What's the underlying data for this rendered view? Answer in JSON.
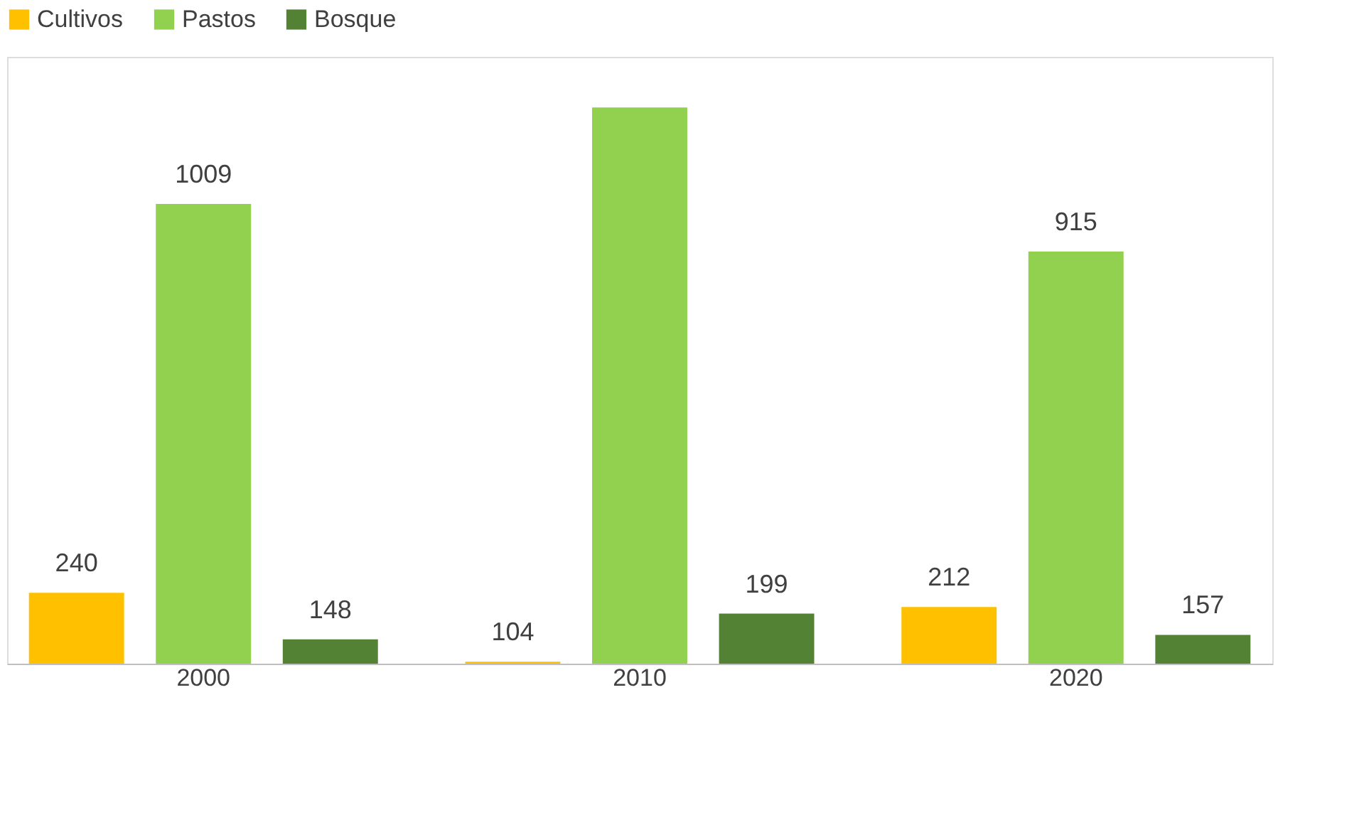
{
  "chart_data": {
    "type": "bar",
    "categories": [
      "2000",
      "2010",
      "2020"
    ],
    "series": [
      {
        "name": "Cultivos",
        "color": "#ffc000",
        "values": [
          240,
          104,
          212
        ],
        "value_labels": [
          "240",
          "104",
          "212"
        ]
      },
      {
        "name": "Pastos",
        "color": "#92d050",
        "values": [
          1009,
          1200,
          915
        ],
        "value_labels": [
          "1009",
          null,
          "915"
        ]
      },
      {
        "name": "Bosque",
        "color": "#548235",
        "values": [
          148,
          199,
          157
        ],
        "value_labels": [
          "148",
          "199",
          "157"
        ]
      }
    ],
    "ylim": [
      100,
      1300
    ],
    "grid": false,
    "legend": "top"
  }
}
